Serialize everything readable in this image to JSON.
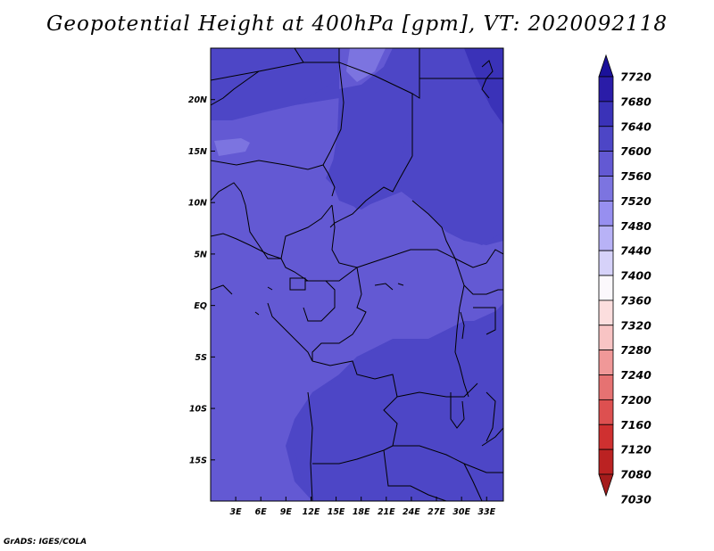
{
  "title": "Geopotential Height at 400hPa [gpm], VT: 2020092118",
  "credit": "GrADS: IGES/COLA",
  "chart_data": {
    "type": "heatmap",
    "title": "Geopotential Height at 400hPa [gpm], VT: 2020092118",
    "variable": "Geopotential Height",
    "level": "400hPa",
    "units": "gpm",
    "valid_time": "2020092118",
    "xlim": [
      0,
      35
    ],
    "ylim": [
      -19,
      25
    ],
    "x_ticks": [
      3,
      6,
      9,
      12,
      15,
      18,
      21,
      24,
      27,
      30,
      33
    ],
    "x_tick_labels": [
      "3E",
      "6E",
      "9E",
      "12E",
      "15E",
      "18E",
      "21E",
      "24E",
      "27E",
      "30E",
      "33E"
    ],
    "y_ticks": [
      20,
      15,
      10,
      5,
      0,
      -5,
      -10,
      -15
    ],
    "y_tick_labels": [
      "20N",
      "15N",
      "10N",
      "5N",
      "EQ",
      "5S",
      "10S",
      "15S"
    ],
    "colorbar": {
      "labels": [
        "7720",
        "7680",
        "7640",
        "7600",
        "7560",
        "7520",
        "7480",
        "7440",
        "7400",
        "7360",
        "7320",
        "7280",
        "7240",
        "7200",
        "7160",
        "7120",
        "7080",
        "7030"
      ],
      "colors": [
        "#1b119a",
        "#2a1ca8",
        "#3a32b8",
        "#4d46c6",
        "#6359d3",
        "#7c74e0",
        "#978ff0",
        "#b8b2f6",
        "#d6d2f9",
        "#fbf8fc",
        "#fcdede",
        "#f8c4c4",
        "#f09898",
        "#e67272",
        "#dd5050",
        "#cf3030",
        "#bb2222",
        "#a51c1c"
      ],
      "extend": "both"
    },
    "field_summary": "Field values mostly 7560–7640 gpm; darker (higher) 7600–7640 over the northeast and southeast, lighter 7560–7600 over the Gulf of Guinea, western Atlantic and central Congo Basin."
  }
}
